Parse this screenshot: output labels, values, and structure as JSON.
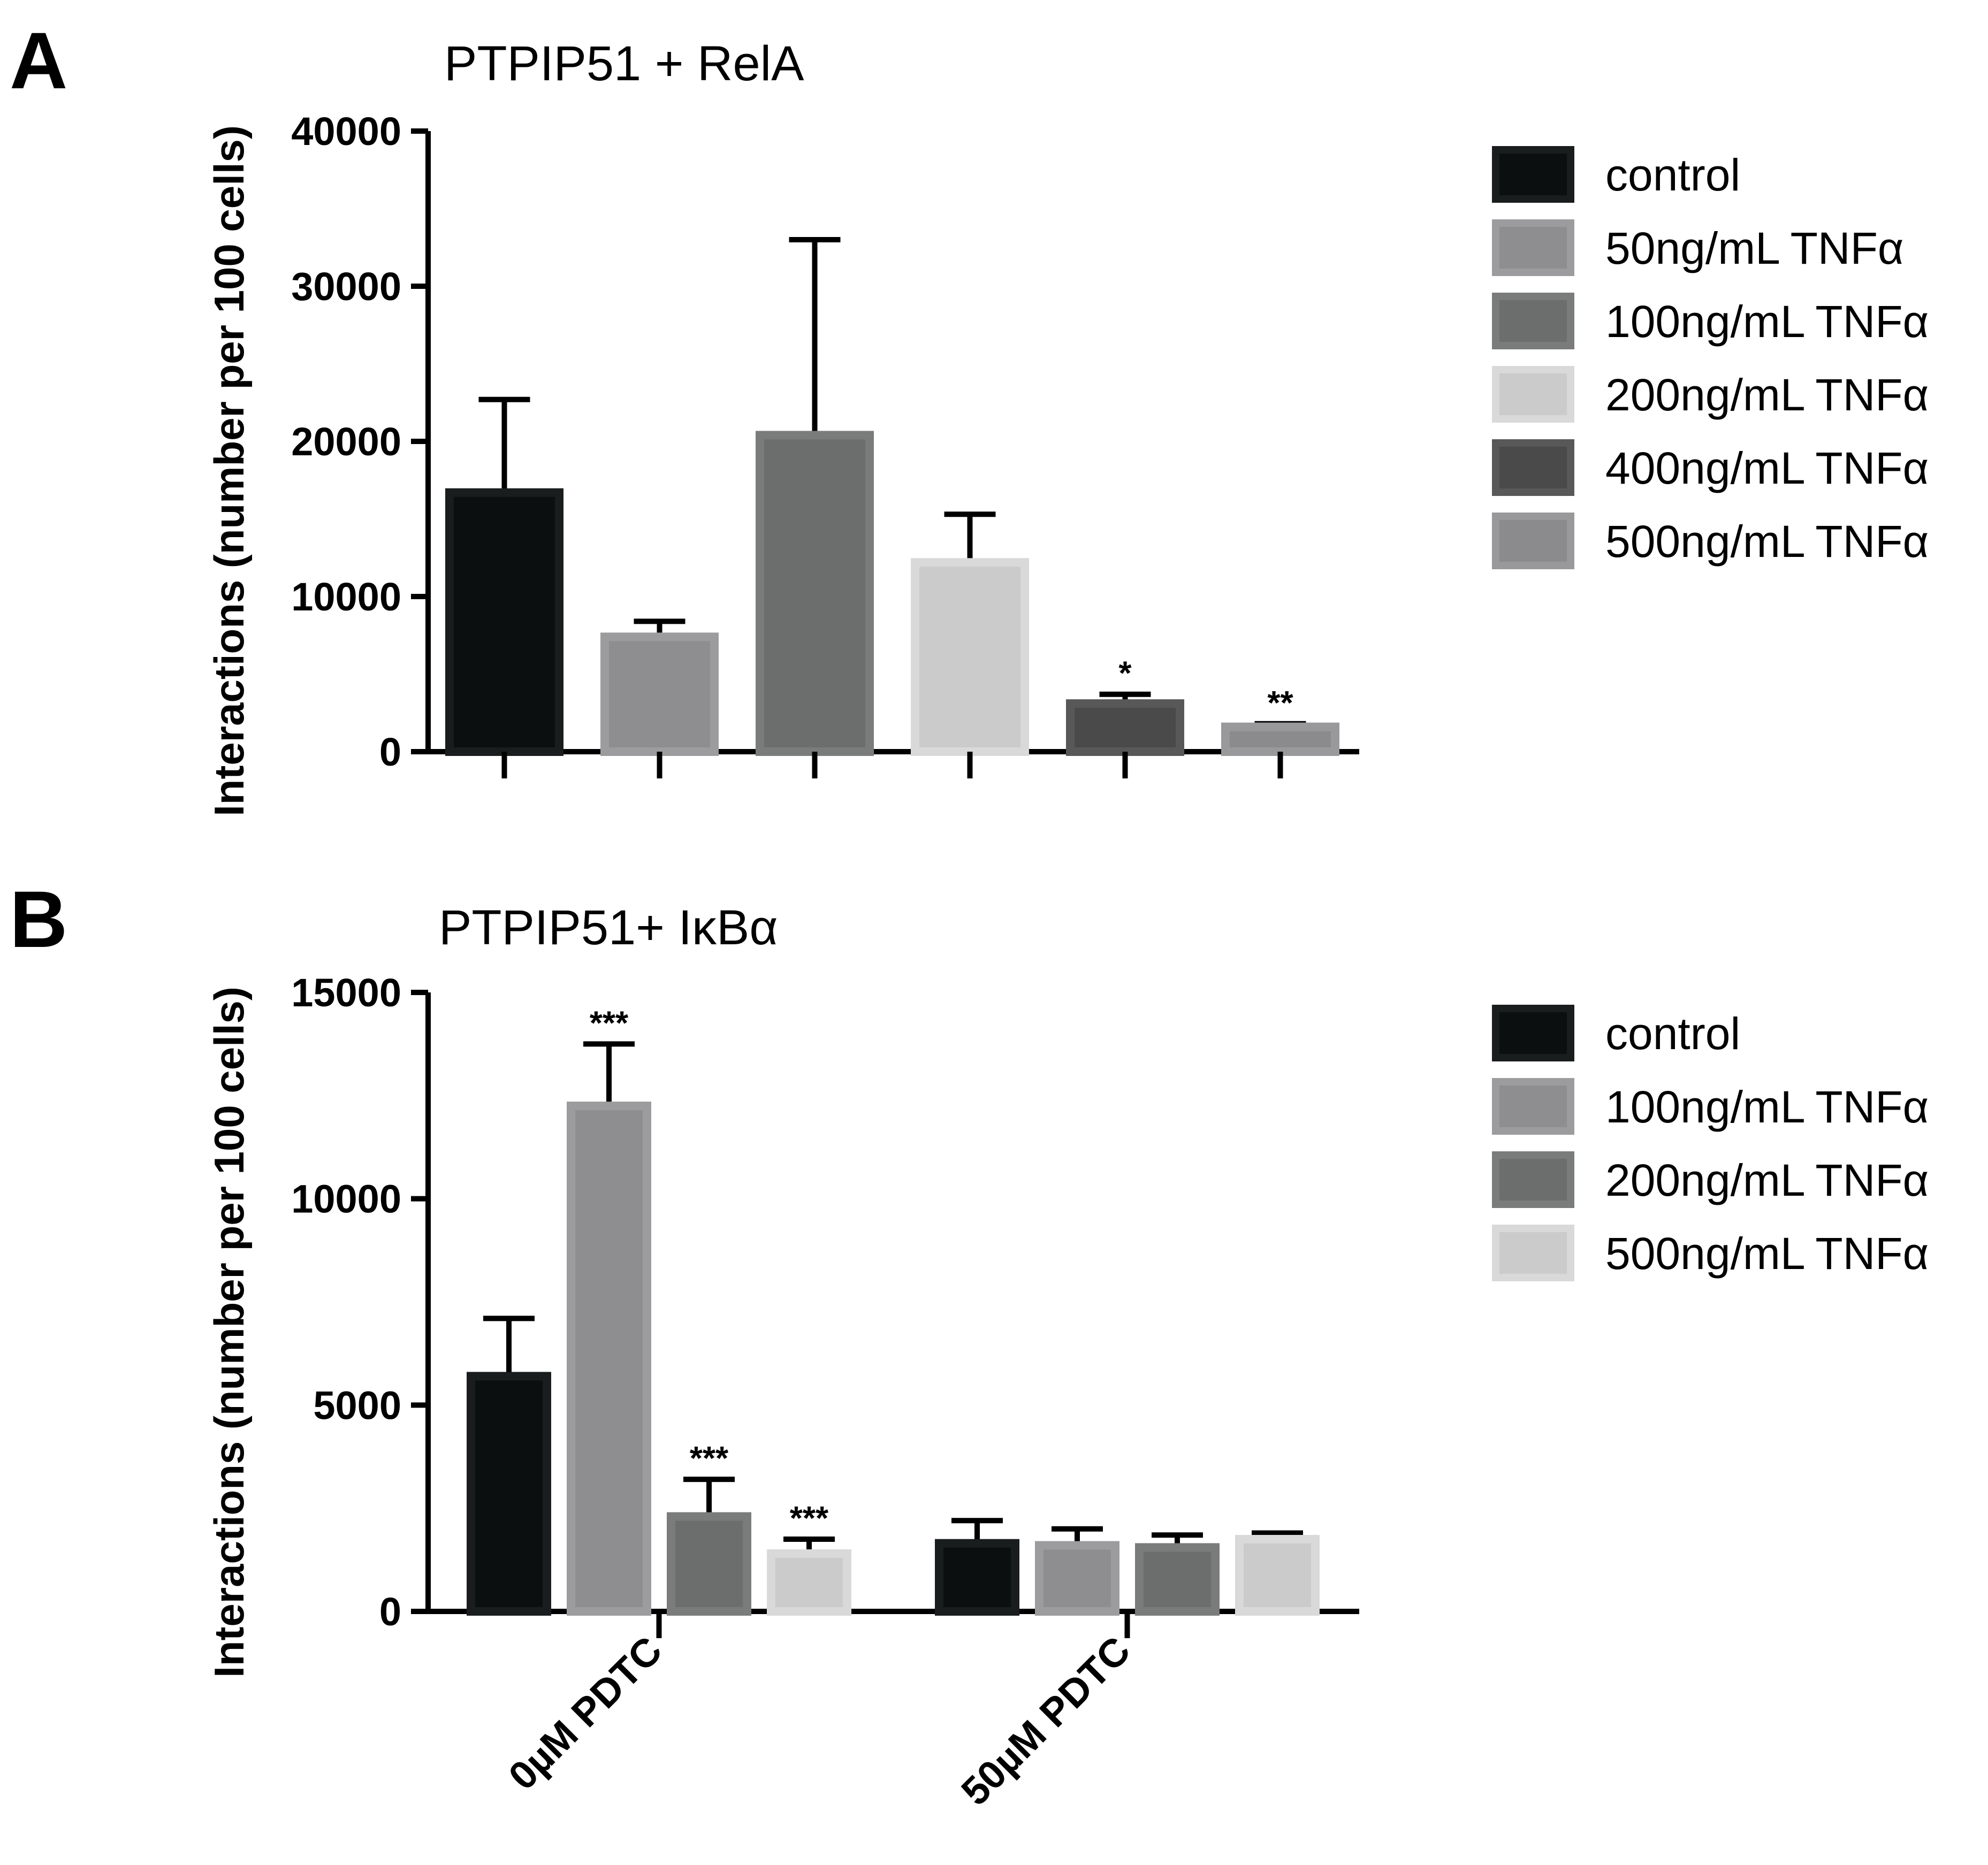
{
  "panels": [
    {
      "letter": "A",
      "chart_data": {
        "type": "bar",
        "title": "PTPIP51 + RelA",
        "ylabel": "Interactions (number per 100 cells)",
        "xlabel": "",
        "ylim": [
          0,
          40000
        ],
        "yticks": [
          "0",
          "10000",
          "20000",
          "30000",
          "40000"
        ],
        "yticks_values": [
          0,
          10000,
          20000,
          30000,
          40000
        ],
        "groups": [
          ""
        ],
        "series": [
          {
            "name": "control",
            "color": "#0c0f10",
            "values": [
              16700
            ],
            "errors": [
              6000
            ],
            "sig": [
              ""
            ]
          },
          {
            "name": "50ng/mL TNFα",
            "color": "#8e8e90",
            "values": [
              7400
            ],
            "errors": [
              1000
            ],
            "sig": [
              ""
            ]
          },
          {
            "name": "100ng/mL TNFα",
            "color": "#6c6e6d",
            "values": [
              20400
            ],
            "errors": [
              12600
            ],
            "sig": [
              ""
            ]
          },
          {
            "name": "200ng/mL TNFα",
            "color": "#cbcbcb",
            "values": [
              12200
            ],
            "errors": [
              3100
            ],
            "sig": [
              ""
            ]
          },
          {
            "name": "400ng/mL TNFα",
            "color": "#4a4a4a",
            "values": [
              3100
            ],
            "errors": [
              600
            ],
            "sig": [
              "*"
            ]
          },
          {
            "name": "500ng/mL TNFα",
            "color": "#8b8b8d",
            "values": [
              1600
            ],
            "errors": [
              200
            ],
            "sig": [
              "**"
            ]
          }
        ]
      }
    },
    {
      "letter": "B",
      "chart_data": {
        "type": "bar",
        "title": "PTPIP51+ IκBα",
        "ylabel": "Interactions (number per 100 cells)",
        "xlabel": "",
        "ylim": [
          0,
          15000
        ],
        "yticks": [
          "0",
          "5000",
          "10000",
          "15000"
        ],
        "yticks_values": [
          0,
          5000,
          10000,
          15000
        ],
        "groups": [
          "0µM PDTC",
          "50µM PDTC"
        ],
        "series": [
          {
            "name": "control",
            "color": "#0c0f10",
            "values": [
              5700,
              1650
            ],
            "errors": [
              1400,
              550
            ],
            "sig": [
              "",
              ""
            ]
          },
          {
            "name": "100ng/mL TNFα",
            "color": "#8e8e90",
            "values": [
              12250,
              1600
            ],
            "errors": [
              1500,
              400
            ],
            "sig": [
              "***",
              ""
            ]
          },
          {
            "name": "200ng/mL TNFα",
            "color": "#6c6e6d",
            "values": [
              2300,
              1550
            ],
            "errors": [
              900,
              300
            ],
            "sig": [
              "***",
              ""
            ]
          },
          {
            "name": "500ng/mL TNFα",
            "color": "#cbcbcb",
            "values": [
              1400,
              1750
            ],
            "errors": [
              350,
              150
            ],
            "sig": [
              "***",
              ""
            ]
          }
        ]
      }
    }
  ]
}
